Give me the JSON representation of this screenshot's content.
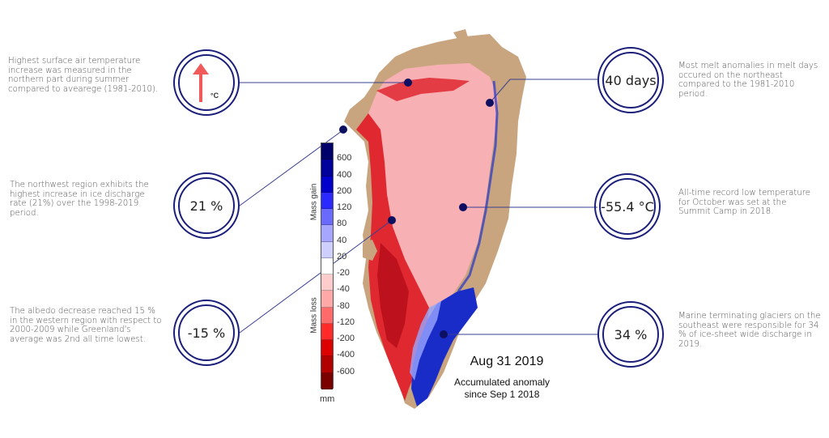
{
  "map": {
    "date": "Aug 31 2019",
    "subtitle_line1": "Accumulated anomaly",
    "subtitle_line2": "since Sep 1 2018",
    "colors": {
      "land": "#c8a57e",
      "ice_loss": "#e8323a",
      "ice_loss_light": "#f7b0b4",
      "ice_gain": "#1a2cc8",
      "marker": "#0d1060",
      "ring": "#1b1f7a"
    }
  },
  "legend": {
    "gain_title": "Mass gain",
    "loss_title": "Mass loss",
    "unit": "mm",
    "ticks": [
      "600",
      "400",
      "200",
      "120",
      "80",
      "40",
      "20",
      "-20",
      "-40",
      "-80",
      "-120",
      "-200",
      "-400",
      "-600"
    ],
    "swatches": [
      "#00006a",
      "#00009a",
      "#0000cc",
      "#2a2aff",
      "#6a6aff",
      "#a6a6ff",
      "#cfcfff",
      "#ffffff",
      "#ffcccc",
      "#ffa8a8",
      "#ff6a6a",
      "#ff2a2a",
      "#dd0000",
      "#b00000",
      "#7a0000"
    ]
  },
  "callouts": [
    {
      "id": "north-temp",
      "value": "",
      "icon": "up-arrow-icon",
      "icon_unit": "°C",
      "text": "Highest surface air temperature increase was measured in the northern part  during summer compared to avearege (1981-2010)."
    },
    {
      "id": "northwest-discharge",
      "value": "21 %",
      "text": "The northwest region exhibits the highest increase in ice discharge rate (21%) over the 1998-2019 period."
    },
    {
      "id": "west-albedo",
      "value": "-15 %",
      "text": "The albedo decrease reached 15 % in the western region with respect to 2000-2009 while Greenland's average was 2nd all time lowest."
    },
    {
      "id": "northeast-melt",
      "value": "40 days",
      "text": "Most melt anomalies in melt days occured on the northeast compared to the 1981-2010 period."
    },
    {
      "id": "summit-temp",
      "value": "-55.4 °C",
      "text": "All-time record low temperature for October was set at the Summit Camp in 2018."
    },
    {
      "id": "southeast-glaciers",
      "value": "34 %",
      "text": "Marine terminating glaciers on the southeast were responsible for 34 % of ice-sheet wide discharge in 2019."
    }
  ]
}
